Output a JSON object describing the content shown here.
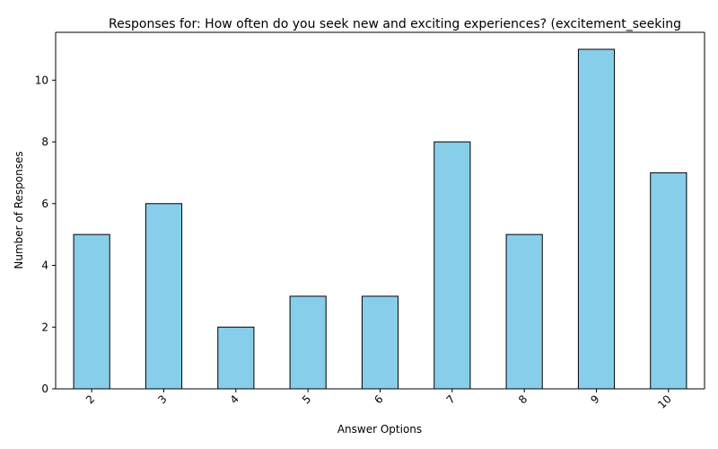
{
  "chart_data": {
    "type": "bar",
    "title": "Responses for: How often do you seek new and exciting experiences? (excitement_seeking",
    "xlabel": "Answer Options",
    "ylabel": "Number of Responses",
    "categories": [
      "2",
      "3",
      "4",
      "5",
      "6",
      "7",
      "8",
      "9",
      "10"
    ],
    "values": [
      5,
      6,
      2,
      3,
      3,
      8,
      5,
      11,
      7
    ],
    "y_ticks": [
      "0",
      "2",
      "4",
      "6",
      "8",
      "10"
    ],
    "ylim": [
      0,
      11.55
    ],
    "grid": false,
    "legend": "none",
    "bar_color": "#87CEEB",
    "bar_edge_color": "#000000"
  }
}
